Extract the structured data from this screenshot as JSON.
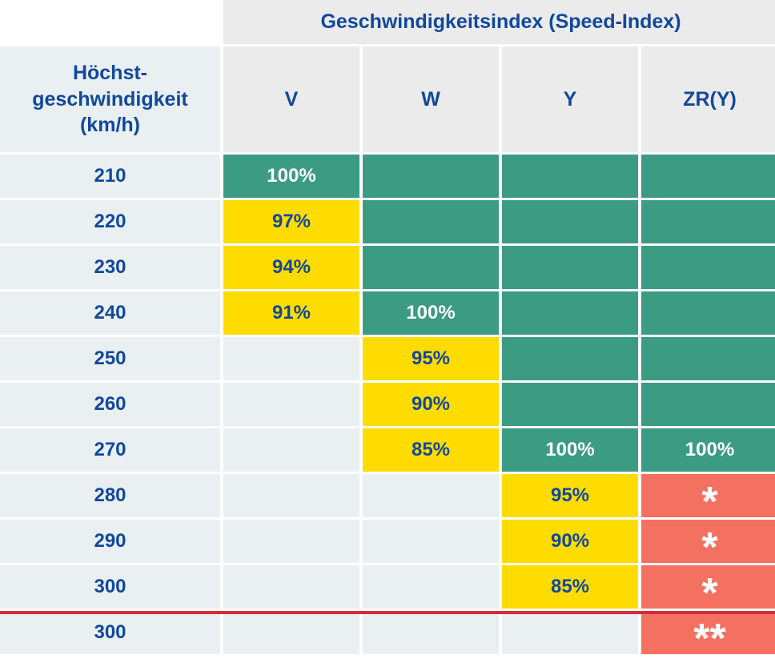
{
  "table": {
    "group_header": "Geschwindigkeitsindex (Speed-Index)",
    "row_header_title": "Höchst-\ngeschwindigkeit\n(km/h)",
    "columns": [
      "V",
      "W",
      "Y",
      "ZR(Y)"
    ],
    "rows": [
      {
        "speed": "210",
        "cells": [
          {
            "text": "100%",
            "color": "green"
          },
          {
            "text": "",
            "color": "green"
          },
          {
            "text": "",
            "color": "green"
          },
          {
            "text": "",
            "color": "green"
          }
        ]
      },
      {
        "speed": "220",
        "cells": [
          {
            "text": "97%",
            "color": "yellow"
          },
          {
            "text": "",
            "color": "green"
          },
          {
            "text": "",
            "color": "green"
          },
          {
            "text": "",
            "color": "green"
          }
        ]
      },
      {
        "speed": "230",
        "cells": [
          {
            "text": "94%",
            "color": "yellow"
          },
          {
            "text": "",
            "color": "green"
          },
          {
            "text": "",
            "color": "green"
          },
          {
            "text": "",
            "color": "green"
          }
        ]
      },
      {
        "speed": "240",
        "cells": [
          {
            "text": "91%",
            "color": "yellow"
          },
          {
            "text": "100%",
            "color": "green"
          },
          {
            "text": "",
            "color": "green"
          },
          {
            "text": "",
            "color": "green"
          }
        ]
      },
      {
        "speed": "250",
        "cells": [
          {
            "text": "",
            "color": "empty"
          },
          {
            "text": "95%",
            "color": "yellow"
          },
          {
            "text": "",
            "color": "green"
          },
          {
            "text": "",
            "color": "green"
          }
        ]
      },
      {
        "speed": "260",
        "cells": [
          {
            "text": "",
            "color": "empty"
          },
          {
            "text": "90%",
            "color": "yellow"
          },
          {
            "text": "",
            "color": "green"
          },
          {
            "text": "",
            "color": "green"
          }
        ]
      },
      {
        "speed": "270",
        "cells": [
          {
            "text": "",
            "color": "empty"
          },
          {
            "text": "85%",
            "color": "yellow"
          },
          {
            "text": "100%",
            "color": "green"
          },
          {
            "text": "100%",
            "color": "green"
          }
        ]
      },
      {
        "speed": "280",
        "cells": [
          {
            "text": "",
            "color": "empty"
          },
          {
            "text": "",
            "color": "empty"
          },
          {
            "text": "95%",
            "color": "yellow"
          },
          {
            "text": "*",
            "color": "red"
          }
        ]
      },
      {
        "speed": "290",
        "cells": [
          {
            "text": "",
            "color": "empty"
          },
          {
            "text": "",
            "color": "empty"
          },
          {
            "text": "90%",
            "color": "yellow"
          },
          {
            "text": "*",
            "color": "red"
          }
        ]
      },
      {
        "speed": "300",
        "cells": [
          {
            "text": "",
            "color": "empty"
          },
          {
            "text": "",
            "color": "empty"
          },
          {
            "text": "85%",
            "color": "yellow"
          },
          {
            "text": "*",
            "color": "red"
          }
        ]
      },
      {
        "speed": "300",
        "cells": [
          {
            "text": "",
            "color": "empty"
          },
          {
            "text": "",
            "color": "empty"
          },
          {
            "text": "",
            "color": "empty"
          },
          {
            "text": "**",
            "color": "red"
          }
        ]
      }
    ]
  },
  "colors": {
    "green": "#3b9b83",
    "yellow": "#ffdc00",
    "red": "#f47060",
    "navy_text": "#10489c",
    "divider_red": "#d62b3a"
  }
}
